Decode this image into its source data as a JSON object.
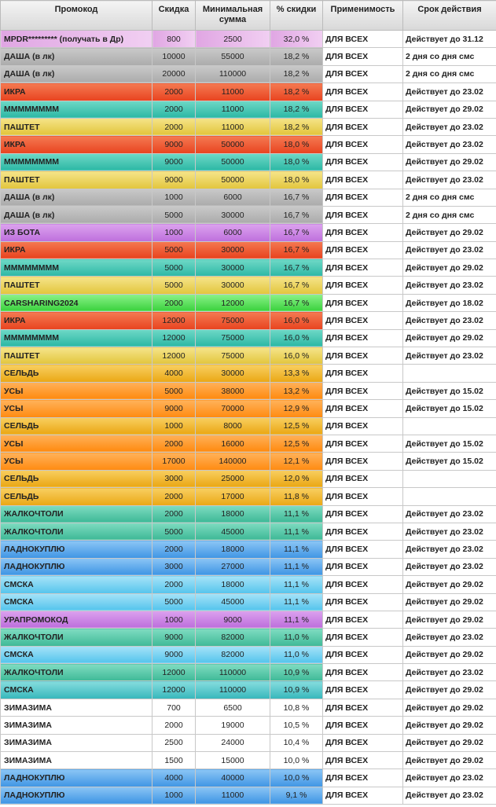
{
  "headers": [
    "Промокод",
    "Скидка",
    "Минимальная сумма",
    "% скидки",
    "Применимость",
    "Срок действия"
  ],
  "rows": [
    {
      "code": "MPDR********* (получать в Др)",
      "discount": "800",
      "min_sum": "2500",
      "percent": "32,0 %",
      "applicability": "ДЛЯ ВСЕХ",
      "validity": "Действует до 31.12",
      "style": "g-purple"
    },
    {
      "code": "ДАША (в лк)",
      "discount": "10000",
      "min_sum": "55000",
      "percent": "18,2 %",
      "applicability": "ДЛЯ ВСЕХ",
      "validity": "2 дня со дня смс",
      "style": "g-grey"
    },
    {
      "code": "ДАША (в лк)",
      "discount": "20000",
      "min_sum": "110000",
      "percent": "18,2 %",
      "applicability": "ДЛЯ ВСЕХ",
      "validity": "2 дня со дня смс",
      "style": "g-grey"
    },
    {
      "code": "ИКРА",
      "discount": "2000",
      "min_sum": "11000",
      "percent": "18,2 %",
      "applicability": "ДЛЯ ВСЕХ",
      "validity": "Действует до 23.02",
      "style": "g-red"
    },
    {
      "code": "ММММММММ",
      "discount": "2000",
      "min_sum": "11000",
      "percent": "18,2 %",
      "applicability": "ДЛЯ ВСЕХ",
      "validity": "Действует до 29.02",
      "style": "g-teal"
    },
    {
      "code": "ПАШТЕТ",
      "discount": "2000",
      "min_sum": "11000",
      "percent": "18,2 %",
      "applicability": "ДЛЯ ВСЕХ",
      "validity": "Действует до 23.02",
      "style": "g-yellow"
    },
    {
      "code": "ИКРА",
      "discount": "9000",
      "min_sum": "50000",
      "percent": "18,0 %",
      "applicability": "ДЛЯ ВСЕХ",
      "validity": "Действует до 23.02",
      "style": "g-red"
    },
    {
      "code": "ММММММММ",
      "discount": "9000",
      "min_sum": "50000",
      "percent": "18,0 %",
      "applicability": "ДЛЯ ВСЕХ",
      "validity": "Действует до 29.02",
      "style": "g-teal"
    },
    {
      "code": "ПАШТЕТ",
      "discount": "9000",
      "min_sum": "50000",
      "percent": "18,0 %",
      "applicability": "ДЛЯ ВСЕХ",
      "validity": "Действует до 23.02",
      "style": "g-yellow"
    },
    {
      "code": "ДАША (в лк)",
      "discount": "1000",
      "min_sum": "6000",
      "percent": "16,7 %",
      "applicability": "ДЛЯ ВСЕХ",
      "validity": "2 дня со дня смс",
      "style": "g-grey"
    },
    {
      "code": "ДАША (в лк)",
      "discount": "5000",
      "min_sum": "30000",
      "percent": "16,7 %",
      "applicability": "ДЛЯ ВСЕХ",
      "validity": "2 дня со дня смс",
      "style": "g-grey"
    },
    {
      "code": "ИЗ БОТА",
      "discount": "1000",
      "min_sum": "6000",
      "percent": "16,7 %",
      "applicability": "ДЛЯ ВСЕХ",
      "validity": "Действует до 29.02",
      "style": "g-violet"
    },
    {
      "code": "ИКРА",
      "discount": "5000",
      "min_sum": "30000",
      "percent": "16,7 %",
      "applicability": "ДЛЯ ВСЕХ",
      "validity": "Действует до 23.02",
      "style": "g-red"
    },
    {
      "code": "ММММММММ",
      "discount": "5000",
      "min_sum": "30000",
      "percent": "16,7 %",
      "applicability": "ДЛЯ ВСЕХ",
      "validity": "Действует до 29.02",
      "style": "g-teal"
    },
    {
      "code": "ПАШТЕТ",
      "discount": "5000",
      "min_sum": "30000",
      "percent": "16,7 %",
      "applicability": "ДЛЯ ВСЕХ",
      "validity": "Действует до 23.02",
      "style": "g-yellow"
    },
    {
      "code": "CARSHARING2024",
      "discount": "2000",
      "min_sum": "12000",
      "percent": "16,7 %",
      "applicability": "ДЛЯ ВСЕХ",
      "validity": "Действует до 18.02",
      "style": "g-green"
    },
    {
      "code": "ИКРА",
      "discount": "12000",
      "min_sum": "75000",
      "percent": "16,0 %",
      "applicability": "ДЛЯ ВСЕХ",
      "validity": "Действует до 23.02",
      "style": "g-red"
    },
    {
      "code": "ММММММММ",
      "discount": "12000",
      "min_sum": "75000",
      "percent": "16,0 %",
      "applicability": "ДЛЯ ВСЕХ",
      "validity": "Действует до 29.02",
      "style": "g-teal"
    },
    {
      "code": "ПАШТЕТ",
      "discount": "12000",
      "min_sum": "75000",
      "percent": "16,0 %",
      "applicability": "ДЛЯ ВСЕХ",
      "validity": "Действует до 23.02",
      "style": "g-yellow"
    },
    {
      "code": "СЕЛЬДЬ",
      "discount": "4000",
      "min_sum": "30000",
      "percent": "13,3 %",
      "applicability": "ДЛЯ ВСЕХ",
      "validity": "",
      "style": "g-amber"
    },
    {
      "code": "УСЫ",
      "discount": "5000",
      "min_sum": "38000",
      "percent": "13,2 %",
      "applicability": "ДЛЯ ВСЕХ",
      "validity": "Действует до 15.02",
      "style": "g-orange"
    },
    {
      "code": "УСЫ",
      "discount": "9000",
      "min_sum": "70000",
      "percent": "12,9 %",
      "applicability": "ДЛЯ ВСЕХ",
      "validity": "Действует до 15.02",
      "style": "g-orange"
    },
    {
      "code": "СЕЛЬДЬ",
      "discount": "1000",
      "min_sum": "8000",
      "percent": "12,5 %",
      "applicability": "ДЛЯ ВСЕХ",
      "validity": "",
      "style": "g-amber"
    },
    {
      "code": "УСЫ",
      "discount": "2000",
      "min_sum": "16000",
      "percent": "12,5 %",
      "applicability": "ДЛЯ ВСЕХ",
      "validity": "Действует до 15.02",
      "style": "g-orange"
    },
    {
      "code": "УСЫ",
      "discount": "17000",
      "min_sum": "140000",
      "percent": "12,1 %",
      "applicability": "ДЛЯ ВСЕХ",
      "validity": "Действует до 15.02",
      "style": "g-orange"
    },
    {
      "code": "СЕЛЬДЬ",
      "discount": "3000",
      "min_sum": "25000",
      "percent": "12,0 %",
      "applicability": "ДЛЯ ВСЕХ",
      "validity": "",
      "style": "g-amber"
    },
    {
      "code": "СЕЛЬДЬ",
      "discount": "2000",
      "min_sum": "17000",
      "percent": "11,8 %",
      "applicability": "ДЛЯ ВСЕХ",
      "validity": "",
      "style": "g-amber"
    },
    {
      "code": "ЖАЛКОЧТОЛИ",
      "discount": "2000",
      "min_sum": "18000",
      "percent": "11,1 %",
      "applicability": "ДЛЯ ВСЕХ",
      "validity": "Действует до 23.02",
      "style": "g-mint"
    },
    {
      "code": "ЖАЛКОЧТОЛИ",
      "discount": "5000",
      "min_sum": "45000",
      "percent": "11,1 %",
      "applicability": "ДЛЯ ВСЕХ",
      "validity": "Действует до 23.02",
      "style": "g-mint"
    },
    {
      "code": "ЛАДНОКУПЛЮ",
      "discount": "2000",
      "min_sum": "18000",
      "percent": "11,1 %",
      "applicability": "ДЛЯ ВСЕХ",
      "validity": "Действует до 23.02",
      "style": "g-blue"
    },
    {
      "code": "ЛАДНОКУПЛЮ",
      "discount": "3000",
      "min_sum": "27000",
      "percent": "11,1 %",
      "applicability": "ДЛЯ ВСЕХ",
      "validity": "Действует до 23.02",
      "style": "g-blue"
    },
    {
      "code": "СМСКА",
      "discount": "2000",
      "min_sum": "18000",
      "percent": "11,1 %",
      "applicability": "ДЛЯ ВСЕХ",
      "validity": "Действует до 29.02",
      "style": "g-sky"
    },
    {
      "code": "СМСКА",
      "discount": "5000",
      "min_sum": "45000",
      "percent": "11,1 %",
      "applicability": "ДЛЯ ВСЕХ",
      "validity": "Действует до 29.02",
      "style": "g-sky"
    },
    {
      "code": "УРАПРОМОКОД",
      "discount": "1000",
      "min_sum": "9000",
      "percent": "11,1 %",
      "applicability": "ДЛЯ ВСЕХ",
      "validity": "Действует до 29.02",
      "style": "g-violet"
    },
    {
      "code": "ЖАЛКОЧТОЛИ",
      "discount": "9000",
      "min_sum": "82000",
      "percent": "11,0 %",
      "applicability": "ДЛЯ ВСЕХ",
      "validity": "Действует до 23.02",
      "style": "g-mint"
    },
    {
      "code": "СМСКА",
      "discount": "9000",
      "min_sum": "82000",
      "percent": "11,0 %",
      "applicability": "ДЛЯ ВСЕХ",
      "validity": "Действует до 29.02",
      "style": "g-sky"
    },
    {
      "code": "ЖАЛКОЧТОЛИ",
      "discount": "12000",
      "min_sum": "110000",
      "percent": "10,9 %",
      "applicability": "ДЛЯ ВСЕХ",
      "validity": "Действует до 23.02",
      "style": "g-mint"
    },
    {
      "code": "СМСКА",
      "discount": "12000",
      "min_sum": "110000",
      "percent": "10,9 %",
      "applicability": "ДЛЯ ВСЕХ",
      "validity": "Действует до 29.02",
      "style": "g-cyan"
    },
    {
      "code": "ЗИМАЗИМА",
      "discount": "700",
      "min_sum": "6500",
      "percent": "10,8 %",
      "applicability": "ДЛЯ ВСЕХ",
      "validity": "Действует до 29.02",
      "style": "plain"
    },
    {
      "code": "ЗИМАЗИМА",
      "discount": "2000",
      "min_sum": "19000",
      "percent": "10,5 %",
      "applicability": "ДЛЯ ВСЕХ",
      "validity": "Действует до 29.02",
      "style": "plain"
    },
    {
      "code": "ЗИМАЗИМА",
      "discount": "2500",
      "min_sum": "24000",
      "percent": "10,4 %",
      "applicability": "ДЛЯ ВСЕХ",
      "validity": "Действует до 29.02",
      "style": "plain"
    },
    {
      "code": "ЗИМАЗИМА",
      "discount": "1500",
      "min_sum": "15000",
      "percent": "10,0 %",
      "applicability": "ДЛЯ ВСЕХ",
      "validity": "Действует до 29.02",
      "style": "plain"
    },
    {
      "code": "ЛАДНОКУПЛЮ",
      "discount": "4000",
      "min_sum": "40000",
      "percent": "10,0 %",
      "applicability": "ДЛЯ ВСЕХ",
      "validity": "Действует до 23.02",
      "style": "g-blue"
    },
    {
      "code": "ЛАДНОКУПЛЮ",
      "discount": "1000",
      "min_sum": "11000",
      "percent": "9,1 %",
      "applicability": "ДЛЯ ВСЕХ",
      "validity": "Действует до 23.02",
      "style": "g-blue"
    }
  ]
}
